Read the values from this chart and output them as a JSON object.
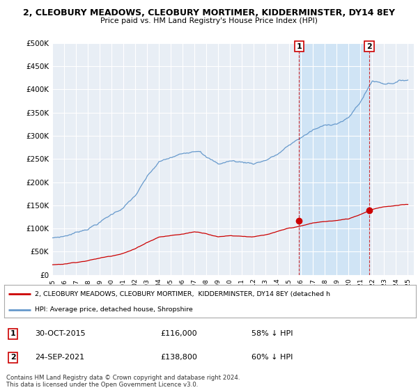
{
  "title": "2, CLEOBURY MEADOWS, CLEOBURY MORTIMER, KIDDERMINSTER, DY14 8EY",
  "subtitle": "Price paid vs. HM Land Registry's House Price Index (HPI)",
  "ylim": [
    0,
    500000
  ],
  "yticks": [
    0,
    50000,
    100000,
    150000,
    200000,
    250000,
    300000,
    350000,
    400000,
    450000,
    500000
  ],
  "ytick_labels": [
    "£0",
    "£50K",
    "£100K",
    "£150K",
    "£200K",
    "£250K",
    "£300K",
    "£350K",
    "£400K",
    "£450K",
    "£500K"
  ],
  "background_color": "#ffffff",
  "plot_bg_color": "#e8eef5",
  "hpi_color": "#6699cc",
  "price_color": "#cc0000",
  "shade_color": "#d0e4f5",
  "sale1_x": 2015.83,
  "sale1_y": 116000,
  "sale1_label": "30-OCT-2015",
  "sale1_price": "£116,000",
  "sale1_hpi": "58% ↓ HPI",
  "sale2_x": 2021.73,
  "sale2_y": 138800,
  "sale2_label": "24-SEP-2021",
  "sale2_price": "£138,800",
  "sale2_hpi": "60% ↓ HPI",
  "legend_line1": "2, CLEOBURY MEADOWS, CLEOBURY MORTIMER,  KIDDERMINSTER, DY14 8EY (detached h",
  "legend_line2": "HPI: Average price, detached house, Shropshire",
  "footer": "Contains HM Land Registry data © Crown copyright and database right 2024.\nThis data is licensed under the Open Government Licence v3.0.",
  "xmin": 1995.0,
  "xmax": 2025.5
}
